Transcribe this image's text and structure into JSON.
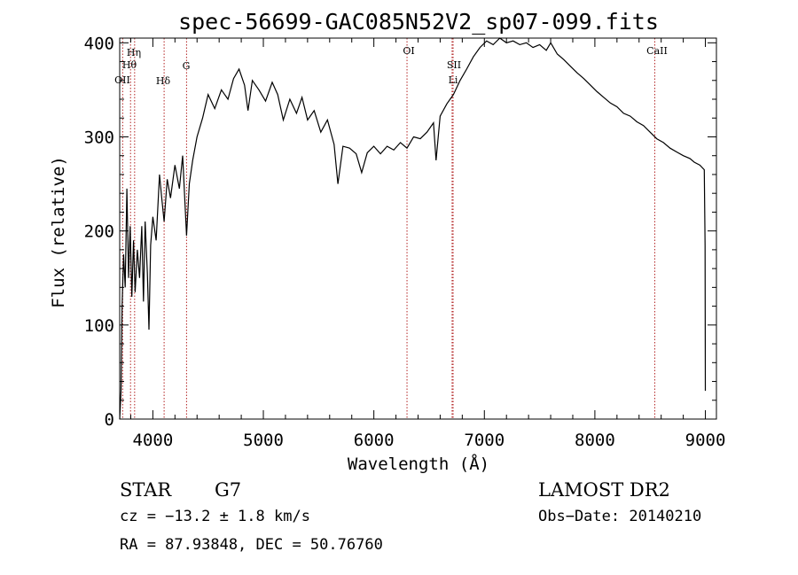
{
  "chart_data": {
    "type": "line",
    "title": "spec-56699-GAC085N52V2_sp07-099.fits",
    "xlabel": "Wavelength (Å)",
    "ylabel": "Flux (relative)",
    "xlim": [
      3700,
      9100
    ],
    "ylim": [
      0,
      405
    ],
    "x_ticks": [
      4000,
      5000,
      6000,
      7000,
      8000,
      9000
    ],
    "y_ticks": [
      0,
      100,
      200,
      300,
      400
    ],
    "grid": false,
    "series_color": "#000000",
    "line_marker_color": "#b22222",
    "spectral_lines": [
      {
        "label": "Hη",
        "wavelength": 3835
      },
      {
        "label": "Hθ",
        "wavelength": 3798
      },
      {
        "label": "OII",
        "wavelength": 3727
      },
      {
        "label": "Hδ",
        "wavelength": 4102
      },
      {
        "label": "G",
        "wavelength": 4305
      },
      {
        "label": "OI",
        "wavelength": 6300
      },
      {
        "label": "SII",
        "wavelength": 6717
      },
      {
        "label": "Li",
        "wavelength": 6708
      },
      {
        "label": "CaII",
        "wavelength": 8542
      }
    ],
    "spectrum": [
      [
        3700,
        0
      ],
      [
        3712,
        30
      ],
      [
        3722,
        120
      ],
      [
        3735,
        175
      ],
      [
        3750,
        140
      ],
      [
        3765,
        245
      ],
      [
        3780,
        150
      ],
      [
        3795,
        205
      ],
      [
        3810,
        130
      ],
      [
        3825,
        190
      ],
      [
        3840,
        135
      ],
      [
        3860,
        180
      ],
      [
        3880,
        150
      ],
      [
        3900,
        205
      ],
      [
        3915,
        125
      ],
      [
        3930,
        210
      ],
      [
        3950,
        155
      ],
      [
        3965,
        95
      ],
      [
        3980,
        185
      ],
      [
        4000,
        215
      ],
      [
        4030,
        190
      ],
      [
        4060,
        260
      ],
      [
        4080,
        235
      ],
      [
        4102,
        210
      ],
      [
        4130,
        255
      ],
      [
        4160,
        235
      ],
      [
        4200,
        270
      ],
      [
        4240,
        245
      ],
      [
        4270,
        280
      ],
      [
        4305,
        195
      ],
      [
        4330,
        250
      ],
      [
        4360,
        275
      ],
      [
        4400,
        300
      ],
      [
        4450,
        320
      ],
      [
        4500,
        345
      ],
      [
        4560,
        330
      ],
      [
        4620,
        350
      ],
      [
        4680,
        340
      ],
      [
        4730,
        362
      ],
      [
        4780,
        372
      ],
      [
        4830,
        355
      ],
      [
        4861,
        328
      ],
      [
        4900,
        360
      ],
      [
        4960,
        350
      ],
      [
        5020,
        338
      ],
      [
        5080,
        358
      ],
      [
        5130,
        345
      ],
      [
        5180,
        318
      ],
      [
        5240,
        340
      ],
      [
        5300,
        325
      ],
      [
        5350,
        342
      ],
      [
        5400,
        318
      ],
      [
        5460,
        328
      ],
      [
        5520,
        305
      ],
      [
        5580,
        318
      ],
      [
        5640,
        292
      ],
      [
        5675,
        250
      ],
      [
        5720,
        290
      ],
      [
        5780,
        288
      ],
      [
        5840,
        282
      ],
      [
        5890,
        262
      ],
      [
        5940,
        283
      ],
      [
        6000,
        290
      ],
      [
        6060,
        282
      ],
      [
        6120,
        290
      ],
      [
        6180,
        286
      ],
      [
        6240,
        294
      ],
      [
        6300,
        288
      ],
      [
        6360,
        300
      ],
      [
        6420,
        298
      ],
      [
        6480,
        305
      ],
      [
        6540,
        315
      ],
      [
        6563,
        275
      ],
      [
        6600,
        322
      ],
      [
        6660,
        335
      ],
      [
        6720,
        345
      ],
      [
        6780,
        360
      ],
      [
        6840,
        372
      ],
      [
        6900,
        385
      ],
      [
        6960,
        395
      ],
      [
        7020,
        402
      ],
      [
        7080,
        398
      ],
      [
        7140,
        405
      ],
      [
        7200,
        400
      ],
      [
        7260,
        402
      ],
      [
        7320,
        398
      ],
      [
        7380,
        400
      ],
      [
        7440,
        395
      ],
      [
        7500,
        398
      ],
      [
        7560,
        392
      ],
      [
        7600,
        400
      ],
      [
        7660,
        388
      ],
      [
        7720,
        382
      ],
      [
        7780,
        375
      ],
      [
        7840,
        368
      ],
      [
        7900,
        362
      ],
      [
        7960,
        355
      ],
      [
        8020,
        348
      ],
      [
        8080,
        342
      ],
      [
        8140,
        336
      ],
      [
        8200,
        332
      ],
      [
        8260,
        325
      ],
      [
        8320,
        322
      ],
      [
        8380,
        316
      ],
      [
        8440,
        312
      ],
      [
        8500,
        305
      ],
      [
        8560,
        298
      ],
      [
        8620,
        294
      ],
      [
        8680,
        288
      ],
      [
        8740,
        284
      ],
      [
        8800,
        280
      ],
      [
        8860,
        277
      ],
      [
        8900,
        273
      ],
      [
        8950,
        270
      ],
      [
        8990,
        265
      ],
      [
        8997,
        185
      ],
      [
        9000,
        30
      ]
    ]
  },
  "info": {
    "class_label": "STAR",
    "subclass": "G7",
    "survey": "LAMOST DR2",
    "cz": "cz = −13.2 ± 1.8 km/s",
    "obs_date": "Obs−Date: 20140210",
    "coords": "RA =  87.93848, DEC =  50.76760"
  }
}
